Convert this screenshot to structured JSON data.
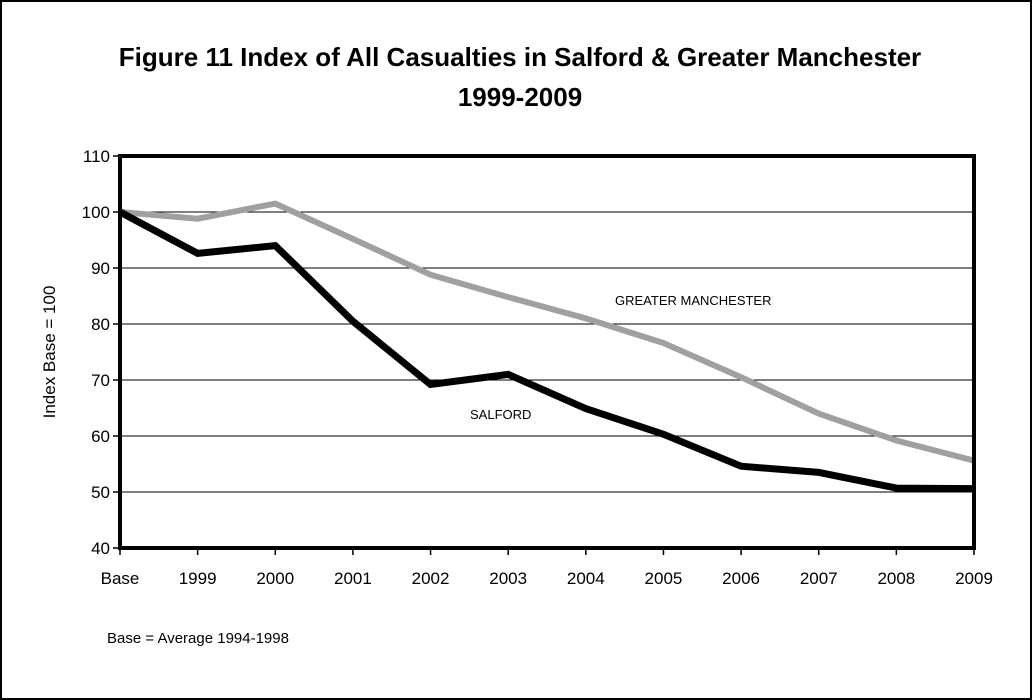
{
  "chart_data": {
    "type": "line",
    "title": "Figure 11 Index of All Casualties in Salford & Greater Manchester",
    "subtitle": "1999-2009",
    "ylabel": "Index Base = 100",
    "xlabel": "",
    "categories": [
      "Base",
      "1999",
      "2000",
      "2001",
      "2002",
      "2003",
      "2004",
      "2005",
      "2006",
      "2007",
      "2008",
      "2009"
    ],
    "ylim": [
      40,
      110
    ],
    "yticks": [
      40,
      50,
      60,
      70,
      80,
      90,
      100,
      110
    ],
    "grid": true,
    "legend": "none",
    "series": [
      {
        "name": "GREATER MANCHESTER",
        "color": "#a0a0a0",
        "values": [
          100,
          98.8,
          101.5,
          95.2,
          88.8,
          84.8,
          81.0,
          76.6,
          70.5,
          64.0,
          59.2,
          55.6
        ]
      },
      {
        "name": "SALFORD",
        "color": "#000000",
        "values": [
          100,
          92.6,
          94.0,
          80.5,
          69.2,
          71.0,
          64.9,
          60.3,
          54.6,
          53.5,
          50.7,
          50.6
        ]
      }
    ],
    "note": "Base = Average 1994-1998"
  }
}
